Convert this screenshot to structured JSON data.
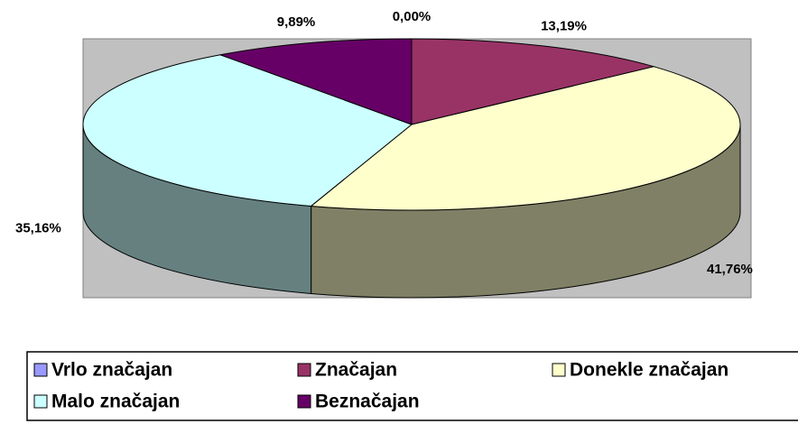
{
  "chart_data": {
    "type": "pie3d",
    "categories": [
      "Vrlo značajan",
      "Značajan",
      "Donekle značajan",
      "Malo značajan",
      "Beznačajan"
    ],
    "values": [
      0,
      13.19,
      41.76,
      35.16,
      9.89
    ],
    "value_labels": [
      "0,00%",
      "13,19%",
      "41,76%",
      "35,16%",
      "9,89%"
    ],
    "colors": [
      "#9999ff",
      "#993366",
      "#ffffcc",
      "#ccffff",
      "#660066"
    ],
    "legend": "bottom"
  }
}
